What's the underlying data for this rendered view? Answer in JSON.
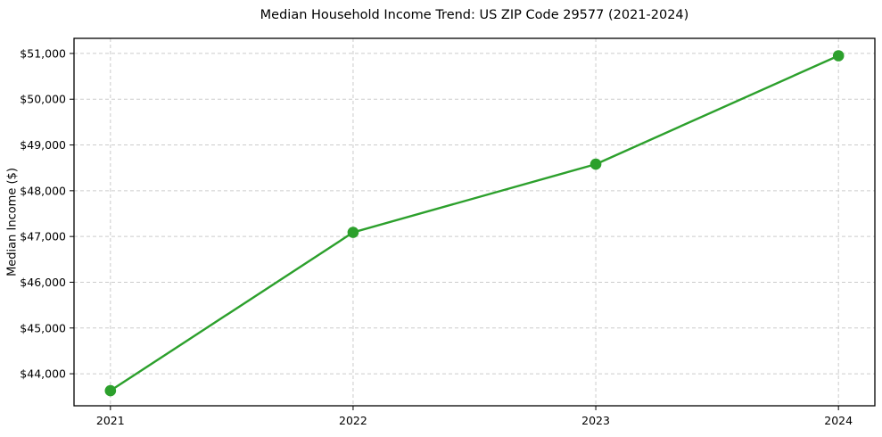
{
  "chart_data": {
    "type": "line",
    "title": "Median Household Income Trend: US ZIP Code 29577 (2021-2024)",
    "xlabel": "",
    "ylabel": "Median Income ($)",
    "categories": [
      2021,
      2022,
      2023,
      2024
    ],
    "series": [
      {
        "name": "Median Household Income",
        "values": [
          43630,
          47090,
          48580,
          50950
        ]
      }
    ],
    "x_ticks": [
      {
        "value": 2021,
        "label": "2021"
      },
      {
        "value": 2022,
        "label": "2022"
      },
      {
        "value": 2023,
        "label": "2023"
      },
      {
        "value": 2024,
        "label": "2024"
      }
    ],
    "y_ticks": [
      {
        "value": 44000,
        "label": "$44,000"
      },
      {
        "value": 45000,
        "label": "$45,000"
      },
      {
        "value": 46000,
        "label": "$46,000"
      },
      {
        "value": 47000,
        "label": "$47,000"
      },
      {
        "value": 48000,
        "label": "$48,000"
      },
      {
        "value": 49000,
        "label": "$49,000"
      },
      {
        "value": 50000,
        "label": "$50,000"
      },
      {
        "value": 51000,
        "label": "$51,000"
      }
    ],
    "xlim": [
      2020.85,
      2024.15
    ],
    "ylim": [
      43300,
      51330
    ],
    "grid": true,
    "legend": "none",
    "colors": {
      "line": "#2ca02c",
      "marker": "#2ca02c",
      "grid": "#cccccc",
      "spine": "#000000",
      "background": "#ffffff"
    },
    "line_width": 2.4,
    "marker_radius": 6.3
  }
}
